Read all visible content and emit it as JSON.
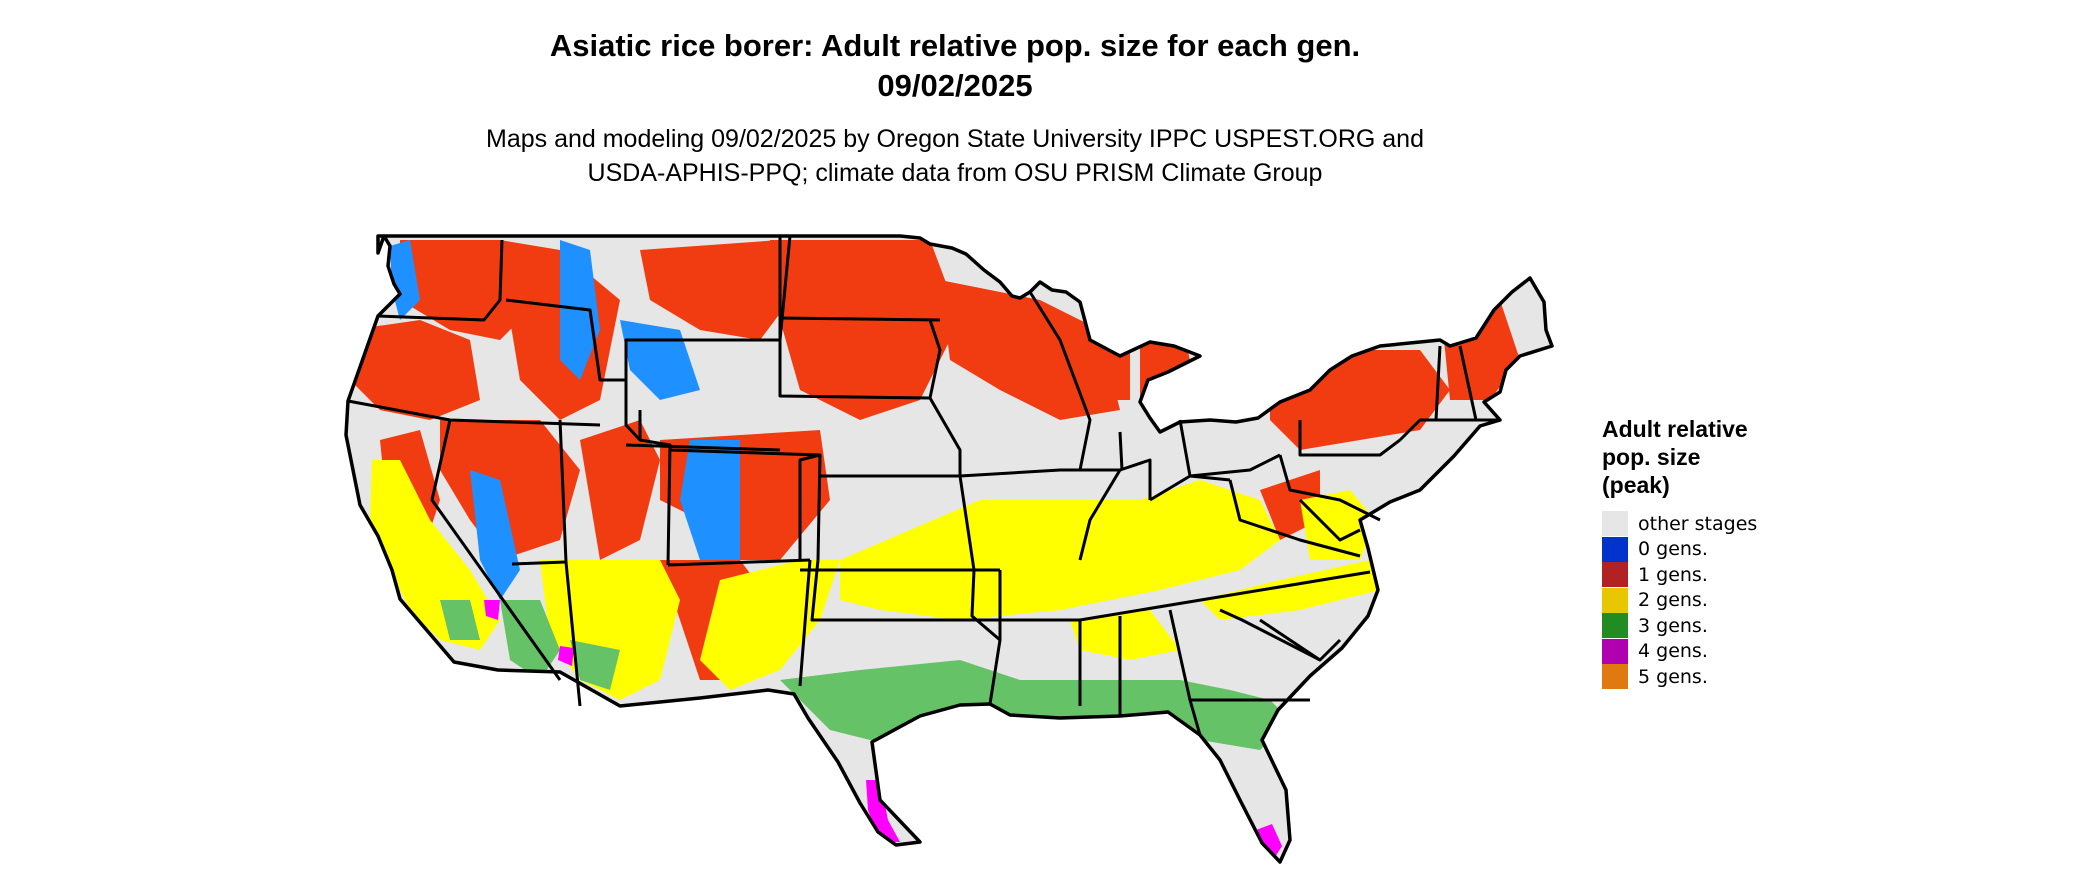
{
  "title_line1": "Asiatic rice borer: Adult relative pop. size for each gen.",
  "title_line2": "09/02/2025",
  "subtitle_line1": "Maps and modeling 09/02/2025 by Oregon State University IPPC USPEST.ORG and",
  "subtitle_line2": "USDA-APHIS-PPQ; climate data from OSU PRISM Climate Group",
  "legend": {
    "title_line1": "Adult relative",
    "title_line2": "pop. size",
    "title_line3": "(peak)",
    "items": [
      {
        "label": "other stages",
        "color": "#e6e6e6"
      },
      {
        "label": "0 gens.",
        "color": "#0033cc"
      },
      {
        "label": "1 gens.",
        "color": "#b22222"
      },
      {
        "label": "2 gens.",
        "color": "#e6c700"
      },
      {
        "label": "3 gens.",
        "color": "#228b22"
      },
      {
        "label": "4 gens.",
        "color": "#b000b0"
      },
      {
        "label": "5 gens.",
        "color": "#e07a10"
      }
    ]
  },
  "map_colors": {
    "base": "#e6e6e6",
    "cold": "#1e90ff",
    "one_gen": "#f03c10",
    "two_gen": "#ffff00",
    "three_gen": "#66c266",
    "four_gen": "#ff00ff",
    "border": "#000000"
  }
}
